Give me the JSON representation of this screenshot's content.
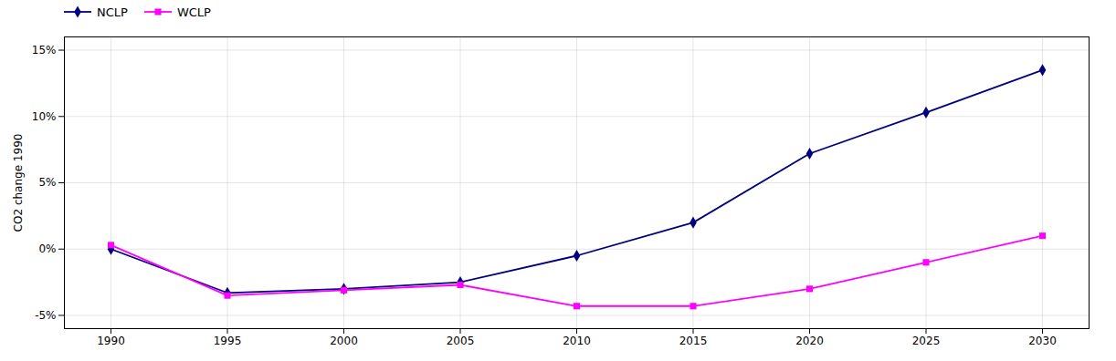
{
  "chart_data": {
    "type": "line",
    "x": [
      1990,
      1995,
      2000,
      2005,
      2010,
      2015,
      2020,
      2025,
      2030
    ],
    "series": [
      {
        "name": "NCLP",
        "color": "#000080",
        "marker": "diamond",
        "values": [
          0.0,
          -3.3,
          -3.0,
          -2.5,
          -0.5,
          2.0,
          7.2,
          10.3,
          13.5
        ]
      },
      {
        "name": "WCLP",
        "color": "#FF00FF",
        "marker": "square",
        "values": [
          0.3,
          -3.5,
          -3.1,
          -2.7,
          -4.3,
          -4.3,
          -3.0,
          -1.0,
          1.0
        ]
      }
    ],
    "ylabel": "CO2 change 1990",
    "xlim": [
      1988,
      2032
    ],
    "xticks": [
      1990,
      1995,
      2000,
      2005,
      2010,
      2015,
      2020,
      2025,
      2030
    ],
    "ylim": [
      -6,
      16
    ],
    "yticks": [
      {
        "value": -5,
        "label": "-5%"
      },
      {
        "value": 0,
        "label": "0%"
      },
      {
        "value": 5,
        "label": "5%"
      },
      {
        "value": 10,
        "label": "10%"
      },
      {
        "value": 15,
        "label": "15%"
      }
    ],
    "grid": true,
    "legend": "upper left"
  }
}
